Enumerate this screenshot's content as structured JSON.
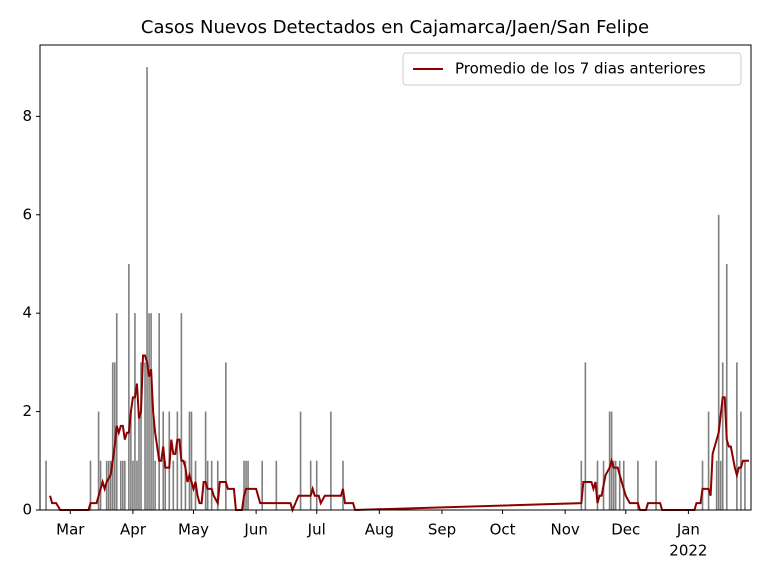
{
  "chart_data": {
    "type": "bar+line",
    "title": "Casos Nuevos Detectados en Cajamarca/Jaen/San Felipe",
    "xlim": [
      0,
      352
    ],
    "ylim": [
      0,
      9.45
    ],
    "yticks": [
      0,
      2,
      4,
      6,
      8
    ],
    "xticks": [
      {
        "value": 15,
        "label": "Mar"
      },
      {
        "value": 46,
        "label": "Apr"
      },
      {
        "value": 76,
        "label": "May"
      },
      {
        "value": 107,
        "label": "Jun"
      },
      {
        "value": 137,
        "label": "Jul"
      },
      {
        "value": 168,
        "label": "Aug"
      },
      {
        "value": 199,
        "label": "Sep"
      },
      {
        "value": 229,
        "label": "Oct"
      },
      {
        "value": 260,
        "label": "Nov"
      },
      {
        "value": 290,
        "label": "Dec"
      },
      {
        "value": 321,
        "label": "Jan"
      }
    ],
    "year_label": "2022",
    "legend": "upper right",
    "bars": {
      "color": "#808080",
      "x": [
        3,
        25,
        29,
        30,
        33,
        34,
        35,
        36,
        37,
        38,
        40,
        41,
        42,
        44,
        45,
        46,
        47,
        48,
        49,
        50,
        52,
        53,
        54,
        55,
        56,
        57,
        59,
        61,
        62,
        64,
        66,
        68,
        70,
        72,
        74,
        75,
        77,
        82,
        83,
        85,
        88,
        92,
        101,
        102,
        103,
        110,
        117,
        129,
        134,
        137,
        144,
        150,
        268,
        270,
        276,
        279,
        282,
        283,
        284,
        285,
        287,
        289,
        296,
        305,
        328,
        331,
        335,
        336,
        337,
        338,
        340,
        345,
        347,
        349
      ],
      "values": [
        1,
        1,
        2,
        1,
        1,
        1,
        1,
        3,
        3,
        4,
        1,
        1,
        1,
        5,
        2,
        1,
        4,
        1,
        2,
        3,
        3,
        9,
        4,
        4,
        2,
        1,
        4,
        2,
        1,
        2,
        1,
        2,
        4,
        1,
        2,
        2,
        1,
        2,
        1,
        1,
        1,
        3,
        1,
        1,
        1,
        1,
        1,
        2,
        1,
        1,
        2,
        1,
        1,
        3,
        1,
        1,
        2,
        2,
        1,
        1,
        1,
        1,
        1,
        1,
        1,
        2,
        1,
        6,
        1,
        3,
        5,
        3,
        2,
        1
      ]
    },
    "series": [
      {
        "name": "Promedio de los 7 dias anteriores",
        "color": "#8b0000",
        "x": [
          5,
          6,
          8,
          10,
          24,
          25,
          28,
          30,
          31,
          32,
          33,
          35,
          36,
          37,
          38,
          39,
          40,
          41,
          42,
          43,
          44,
          45,
          46,
          47,
          48,
          49,
          50,
          51,
          52,
          53,
          54,
          55,
          56,
          57,
          58,
          59,
          60,
          61,
          62,
          64,
          65,
          66,
          67,
          68,
          69,
          70,
          71,
          72,
          73,
          74,
          75,
          76,
          77,
          78,
          79,
          80,
          81,
          82,
          83,
          85,
          86,
          88,
          89,
          92,
          93,
          96,
          97,
          100,
          101,
          102,
          107,
          109,
          124,
          125,
          128,
          134,
          135,
          136,
          138,
          139,
          141,
          144,
          149,
          150,
          151,
          155,
          156,
          268,
          269,
          273,
          274,
          275,
          276,
          277,
          278,
          280,
          282,
          283,
          284,
          286,
          288,
          289,
          290,
          292,
          296,
          297,
          300,
          301,
          307,
          308,
          324,
          325,
          327,
          328,
          331,
          332,
          333,
          335,
          336,
          338,
          339,
          340,
          341,
          342,
          344,
          345,
          346,
          347,
          348,
          351
        ],
        "values": [
          0.29,
          0.14,
          0.14,
          0,
          0,
          0.14,
          0.14,
          0.43,
          0.57,
          0.43,
          0.57,
          0.71,
          1,
          1.29,
          1.71,
          1.57,
          1.71,
          1.71,
          1.43,
          1.57,
          1.57,
          2,
          2.29,
          2.29,
          2.57,
          1.86,
          2,
          3.14,
          3.14,
          3,
          2.71,
          2.86,
          2,
          1.57,
          1.29,
          1,
          1,
          1.29,
          0.86,
          0.86,
          1.43,
          1.14,
          1.14,
          1.43,
          1.43,
          1,
          1,
          0.86,
          0.57,
          0.71,
          0.57,
          0.43,
          0.57,
          0.29,
          0.14,
          0.14,
          0.57,
          0.57,
          0.43,
          0.43,
          0.29,
          0.14,
          0.57,
          0.57,
          0.43,
          0.43,
          0,
          0,
          0.29,
          0.43,
          0.43,
          0.14,
          0.14,
          0,
          0.29,
          0.29,
          0.43,
          0.29,
          0.29,
          0.14,
          0.29,
          0.29,
          0.29,
          0.43,
          0.14,
          0.14,
          0,
          0.14,
          0.57,
          0.57,
          0.43,
          0.57,
          0.14,
          0.29,
          0.29,
          0.71,
          0.86,
          1,
          0.86,
          0.86,
          0.57,
          0.43,
          0.29,
          0.14,
          0.14,
          0,
          0,
          0.14,
          0.14,
          0,
          0,
          0.14,
          0.14,
          0.43,
          0.43,
          0.29,
          1.14,
          1.43,
          1.57,
          2.29,
          2.29,
          1.43,
          1.29,
          1.29,
          0.86,
          0.71,
          0.86,
          0.86,
          1,
          1
        ]
      }
    ]
  }
}
